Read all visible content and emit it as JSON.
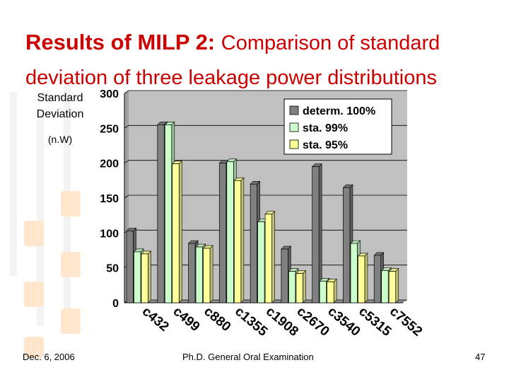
{
  "slide": {
    "title_bold": "Results of MILP 2: ",
    "title_rest": "Comparison of standard deviation of three leakage power distributions",
    "y_label_line1": "Standard",
    "y_label_line2": "Deviation",
    "y_label_unit": "(n.W)",
    "footer_date": "Dec. 6, 2006",
    "footer_center": "Ph.D. General Oral Examination",
    "page_number": "47"
  },
  "chart_data": {
    "type": "bar",
    "title": "",
    "xlabel": "",
    "ylabel": "Standard Deviation (n.W)",
    "ylim": [
      0,
      300
    ],
    "yticks": [
      0,
      50,
      100,
      150,
      200,
      250,
      300
    ],
    "categories": [
      "c432",
      "c499",
      "c880",
      "c1355",
      "c1908",
      "c2670",
      "c3540",
      "c5315",
      "c7552"
    ],
    "series": [
      {
        "name": "determ. 100%",
        "color": "#808080",
        "values": [
          103,
          255,
          85,
          200,
          170,
          77,
          195,
          165,
          68
        ]
      },
      {
        "name": "sta. 99%",
        "color": "#ccffcc",
        "values": [
          73,
          255,
          80,
          202,
          116,
          45,
          31,
          85,
          46
        ]
      },
      {
        "name": "sta. 95%",
        "color": "#ffff99",
        "values": [
          70,
          199,
          78,
          175,
          127,
          42,
          30,
          67,
          45
        ]
      }
    ],
    "legend_position": "top-right"
  }
}
